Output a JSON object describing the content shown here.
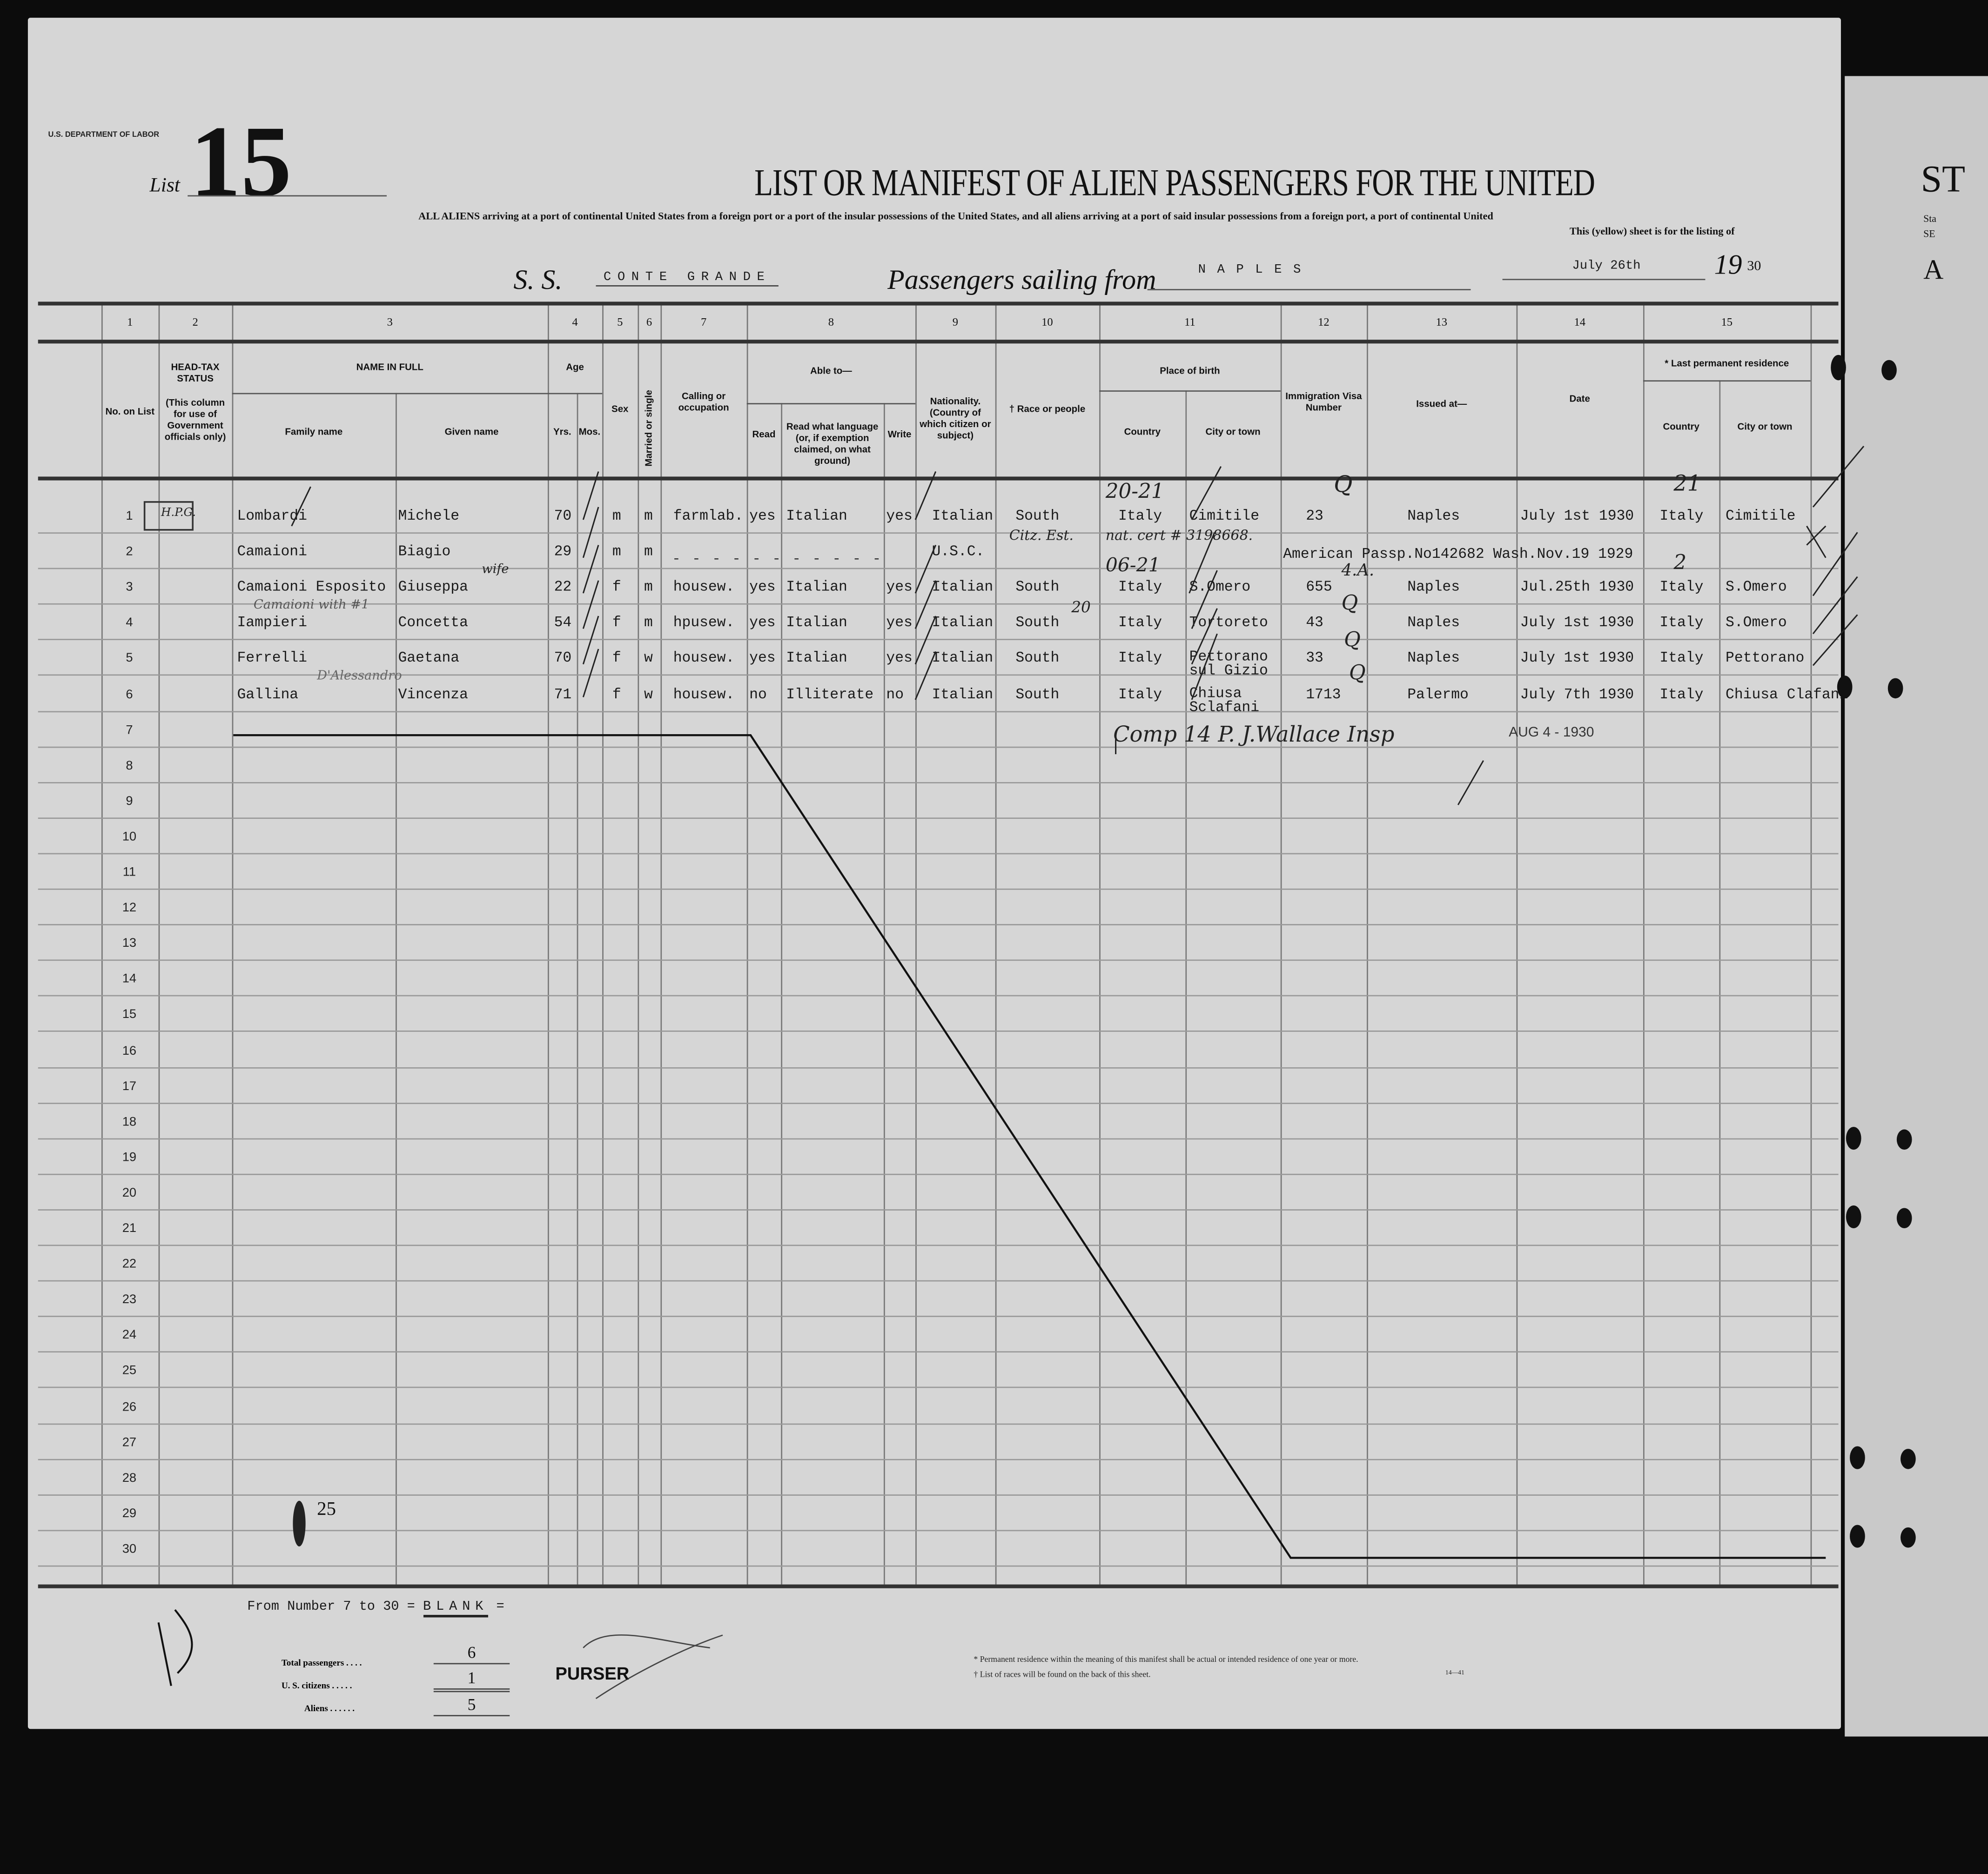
{
  "header": {
    "department": "U.S. DEPARTMENT OF LABOR",
    "list_label": "List",
    "list_number": "15",
    "title": "LIST OR MANIFEST OF ALIEN PASSENGERS FOR THE UNITED",
    "subtitle_line1": "ALL ALIENS arriving at a port of continental United States from a foreign port or a port of the insular possessions of the United States, and all aliens arriving at a port of said insular possessions from a foreign port, a port of continental United",
    "subtitle_line2": "This (yellow) sheet is for the listing of",
    "ss_label": "S. S.",
    "ship_name": "CONTE GRANDE",
    "sailing_label": "Passengers sailing from",
    "port": "NAPLES",
    "date": "July 26th",
    "year_prefix": "19",
    "year_suffix": "30"
  },
  "column_numbers": [
    "1",
    "2",
    "3",
    "4",
    "5",
    "6",
    "7",
    "8",
    "9",
    "10",
    "11",
    "12",
    "13",
    "14",
    "15"
  ],
  "column_headers": {
    "no_on_list": "No. on List",
    "head_tax": "HEAD-TAX STATUS",
    "head_tax_note": "(This column for use of Government officials only)",
    "name_in_full": "NAME IN FULL",
    "family_name": "Family name",
    "given_name": "Given name",
    "age": "Age",
    "yrs": "Yrs.",
    "mos": "Mos.",
    "sex": "Sex",
    "married": "Married or single",
    "occupation": "Calling or occupation",
    "able_to": "Able to—",
    "read": "Read",
    "read_language": "Read what language (or, if exemption claimed, on what ground)",
    "write": "Write",
    "nationality": "Nationality. (Country of which citizen or subject)",
    "race": "† Race or people",
    "place_of_birth": "Place of birth",
    "country": "Country",
    "city": "City or town",
    "visa": "Immigration Visa Number",
    "issued_at": "Issued at—",
    "date": "Date",
    "last_residence": "* Last permanent residence",
    "res_country": "Country",
    "res_city": "City or town"
  },
  "rows": [
    {
      "no": "1",
      "family": "Lombardi",
      "given": "Michele",
      "yrs": "70",
      "sex": "m",
      "marital": "m",
      "occupation": "farmlab.",
      "read": "yes",
      "language": "Italian",
      "write": "yes",
      "nationality": "Italian",
      "race": "South",
      "birth_country": "Italy",
      "birth_city": "Cimitile",
      "visa": "23",
      "issued_at": "Naples",
      "date": "July 1st 1930",
      "res_country": "Italy",
      "res_city": "Cimitile"
    },
    {
      "no": "2",
      "family": "Camaioni",
      "given": "Biagio",
      "yrs": "29",
      "sex": "m",
      "marital": "m",
      "occupation": "",
      "read": "",
      "language": "",
      "write": "",
      "nationality": "U.S.C.",
      "race": "",
      "birth_country": "",
      "birth_city": "",
      "visa": "",
      "issued_at": "",
      "date": "",
      "res_country": "",
      "res_city": "",
      "note": "American Passp.No142682 Wash.Nov.19 1929"
    },
    {
      "no": "3",
      "family": "Camaioni Esposito",
      "given": "Giuseppa",
      "yrs": "22",
      "sex": "f",
      "marital": "m",
      "occupation": "housew.",
      "read": "yes",
      "language": "Italian",
      "write": "yes",
      "nationality": "Italian",
      "race": "South",
      "birth_country": "Italy",
      "birth_city": "S.Omero",
      "visa": "655",
      "issued_at": "Naples",
      "date": "Jul.25th 1930",
      "res_country": "Italy",
      "res_city": "S.Omero"
    },
    {
      "no": "4",
      "family": "Iampieri",
      "given": "Concetta",
      "yrs": "54",
      "sex": "f",
      "marital": "m",
      "occupation": "hpusew.",
      "read": "yes",
      "language": "Italian",
      "write": "yes",
      "nationality": "Italian",
      "race": "South",
      "birth_country": "Italy",
      "birth_city": "Tortoreto",
      "visa": "43",
      "issued_at": "Naples",
      "date": "July 1st 1930",
      "res_country": "Italy",
      "res_city": "S.Omero"
    },
    {
      "no": "5",
      "family": "Ferrelli",
      "given": "Gaetana",
      "yrs": "70",
      "sex": "f",
      "marital": "w",
      "occupation": "housew.",
      "read": "yes",
      "language": "Italian",
      "write": "yes",
      "nationality": "Italian",
      "race": "South",
      "birth_country": "Italy",
      "birth_city": "Pettorano sul Gizio",
      "visa": "33",
      "issued_at": "Naples",
      "date": "July 1st 1930",
      "res_country": "Italy",
      "res_city": "Pettorano"
    },
    {
      "no": "6",
      "family": "Gallina",
      "given": "Vincenza",
      "yrs": "71",
      "sex": "f",
      "marital": "w",
      "occupation": "housew.",
      "read": "no",
      "language": "Illiterate",
      "write": "no",
      "nationality": "Italian",
      "race": "South",
      "birth_country": "Italy",
      "birth_city": "Chiusa Sclafani",
      "visa": "1713",
      "issued_at": "Palermo",
      "date": "July 7th 1930",
      "res_country": "Italy",
      "res_city": "Chiusa Clafani"
    }
  ],
  "row_numbers": [
    "1",
    "2",
    "3",
    "4",
    "5",
    "6",
    "7",
    "8",
    "9",
    "10",
    "11",
    "12",
    "13",
    "14",
    "15",
    "16",
    "17",
    "18",
    "19",
    "20",
    "21",
    "22",
    "23",
    "24",
    "25",
    "26",
    "27",
    "28",
    "29",
    "30"
  ],
  "annotations": {
    "row1_birth": "20-21",
    "row1_visa_class": "Q",
    "row1_res_mark": "21",
    "row2_citizenship": "Citz. Est.",
    "row2_cert": "nat. cert # 3198668.",
    "row3_birth": "06-21",
    "row3_visa_class": "4.A.",
    "row3_res_mark": "2",
    "row4_birth": "20",
    "row4_visa_class": "Q",
    "row5_visa_class": "Q",
    "row6_visa_class": "Q",
    "name_note1": "Camaioni with #1",
    "name_note2": "D'Alessandro",
    "name_note3": "wife",
    "inspector_note": "Comp 14 P.  J.Wallace Insp",
    "stamp_date": "AUG 4 - 1930",
    "row29_mark": "25",
    "head_tax_stamp": "H.P.G.",
    "left_margin": "15"
  },
  "footer": {
    "blank_note_prefix": "From Number 7 to 30 =",
    "blank_word": "BLANK",
    "blank_note_suffix": "=",
    "total_passengers_label": "Total passengers . . . .",
    "total_passengers": "6",
    "us_citizens_label": "U. S. citizens . . . . .",
    "us_citizens": "1",
    "aliens_label": "Aliens . . . . . .",
    "aliens": "5",
    "purser_label": "PURSER",
    "footnote1": "* Permanent residence within the meaning of this manifest shall be actual or intended residence of one year or more.",
    "footnote2": "† List of races will be found on the back of this sheet.",
    "form_number": "14—41"
  },
  "next_page": {
    "partial1": "ST",
    "partial2": "Sta",
    "partial3": "SE",
    "partial4": "A"
  }
}
